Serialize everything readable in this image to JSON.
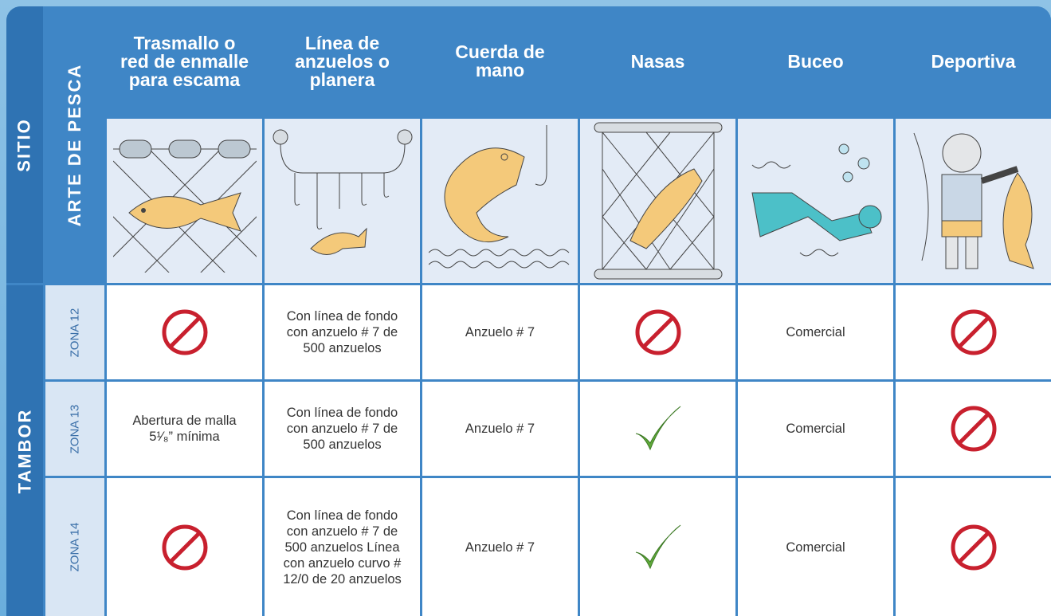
{
  "header": {
    "site_label": "SITIO",
    "gear_label": "ARTE DE PESCA",
    "columns": [
      "Trasmallo o red de enmalle para escama",
      "Línea de anzuelos o planera",
      "Cuerda de mano",
      "Nasas",
      "Buceo",
      "Deportiva"
    ]
  },
  "site": "TAMBOR",
  "rows": [
    {
      "zone": "ZONA 12",
      "texts": [
        "Con línea de fondo con anzuelo # 7 de 500 anzuelos",
        "Anzuelo # 7",
        "Comercial"
      ]
    },
    {
      "zone": "ZONA 13",
      "texts": [
        "Abertura de malla 5¹⁄₈” mínima",
        "Con línea de fondo con anzuelo # 7 de 500 anzuelos",
        "Anzuelo # 7",
        "Comercial"
      ]
    },
    {
      "zone": "ZONA 14",
      "texts": [
        "Con línea de fondo con anzuelo # 7 de 500 anzuelos Línea con anzuelo curvo # 12/0 de 20 anzuelos",
        "Anzuelo # 7",
        "Comercial"
      ]
    }
  ]
}
